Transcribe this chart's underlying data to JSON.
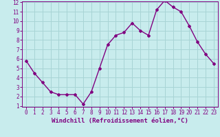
{
  "x": [
    0,
    1,
    2,
    3,
    4,
    5,
    6,
    7,
    8,
    9,
    10,
    11,
    12,
    13,
    14,
    15,
    16,
    17,
    18,
    19,
    20,
    21,
    22,
    23
  ],
  "y": [
    5.8,
    4.5,
    3.5,
    2.5,
    2.2,
    2.2,
    2.2,
    1.2,
    2.5,
    5.0,
    7.5,
    8.5,
    8.8,
    9.8,
    9.0,
    8.5,
    11.2,
    12.2,
    11.5,
    11.0,
    9.5,
    7.8,
    6.5,
    5.5
  ],
  "line_color": "#800080",
  "marker": "D",
  "marker_size": 2,
  "bg_color": "#c8eced",
  "grid_color": "#a8d4d5",
  "xlabel": "Windchill (Refroidissement éolien,°C)",
  "xlabel_color": "#800080",
  "tick_color": "#800080",
  "xlim": [
    -0.5,
    23.5
  ],
  "ylim": [
    1,
    12
  ],
  "yticks": [
    1,
    2,
    3,
    4,
    5,
    6,
    7,
    8,
    9,
    10,
    11,
    12
  ],
  "xticks": [
    0,
    1,
    2,
    3,
    4,
    5,
    6,
    7,
    8,
    9,
    10,
    11,
    12,
    13,
    14,
    15,
    16,
    17,
    18,
    19,
    20,
    21,
    22,
    23
  ],
  "axis_label_fontsize": 6.5,
  "tick_fontsize": 5.5,
  "line_width": 1.0
}
